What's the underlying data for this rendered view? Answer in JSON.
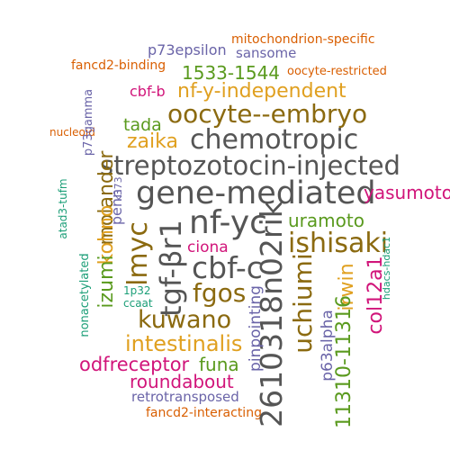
{
  "words": [
    {
      "text": "streptozotocin-injected",
      "color": "#555555"
    },
    {
      "text": "gene-mediated",
      "color": "#555555"
    },
    {
      "text": "nf-yc",
      "color": "#555555"
    },
    {
      "text": "2610318n02rik",
      "color": "#555555"
    },
    {
      "text": "tgf-βr1",
      "color": "#555555"
    },
    {
      "text": "chemotropic",
      "color": "#555555"
    },
    {
      "text": "cbf-c",
      "color": "#555555"
    },
    {
      "text": "oocyte--embryo",
      "color": "#8b6a10"
    },
    {
      "text": "lmyc",
      "color": "#8b6a10"
    },
    {
      "text": "ishisaki",
      "color": "#8b6a10"
    },
    {
      "text": "kuwano",
      "color": "#8b6a10"
    },
    {
      "text": "fgos",
      "color": "#8b6a10"
    },
    {
      "text": "uchiumi",
      "color": "#8b6a10"
    },
    {
      "text": "molander",
      "color": "#8b6a10"
    },
    {
      "text": "nf-y-independent",
      "color": "#e0a020"
    },
    {
      "text": "zaika",
      "color": "#e0a020"
    },
    {
      "text": "intestinalis",
      "color": "#e0a020"
    },
    {
      "text": "irwin",
      "color": "#e0a020"
    },
    {
      "text": "kohno",
      "color": "#e0a020"
    },
    {
      "text": "11310-11316",
      "color": "#5a9a1e"
    },
    {
      "text": "1533-1544",
      "color": "#5a9a1e"
    },
    {
      "text": "tada",
      "color": "#5a9a1e"
    },
    {
      "text": "uramoto",
      "color": "#5a9a1e"
    },
    {
      "text": "funa",
      "color": "#5a9a1e"
    },
    {
      "text": "izumi",
      "color": "#5a9a1e"
    },
    {
      "text": "yasumoto",
      "color": "#d1157a"
    },
    {
      "text": "col12a1",
      "color": "#d1157a"
    },
    {
      "text": "odfreceptor",
      "color": "#d1157a"
    },
    {
      "text": "roundabout",
      "color": "#d1157a"
    },
    {
      "text": "ciona",
      "color": "#d1157a"
    },
    {
      "text": "cbf-b",
      "color": "#d1157a"
    },
    {
      "text": "p73epsilon",
      "color": "#6a64a8"
    },
    {
      "text": "sansome",
      "color": "#6a64a8"
    },
    {
      "text": "pinpointing",
      "color": "#6a64a8"
    },
    {
      "text": "p63alpha",
      "color": "#6a64a8"
    },
    {
      "text": "retrotransposed",
      "color": "#6a64a8"
    },
    {
      "text": "penn",
      "color": "#6a64a8"
    },
    {
      "text": "p73gamma",
      "color": "#6a64a8"
    },
    {
      "text": "mitochondrion-specific",
      "color": "#d95f02"
    },
    {
      "text": "oocyte-restricted",
      "color": "#d95f02"
    },
    {
      "text": "fancd2-binding",
      "color": "#d95f02"
    },
    {
      "text": "nucleoid",
      "color": "#d95f02"
    },
    {
      "text": "fancd2-interacting",
      "color": "#d95f02"
    },
    {
      "text": "atad3-tufm",
      "color": "#1b9e77"
    },
    {
      "text": "nonacetylated",
      "color": "#1b9e77"
    },
    {
      "text": "1p32",
      "color": "#1b9e77"
    },
    {
      "text": "ccaat",
      "color": "#1b9e77"
    },
    {
      "text": "hdacs-hdac1",
      "color": "#1b9e77"
    },
    {
      "text": "k373",
      "color": "#6a64a8"
    }
  ]
}
